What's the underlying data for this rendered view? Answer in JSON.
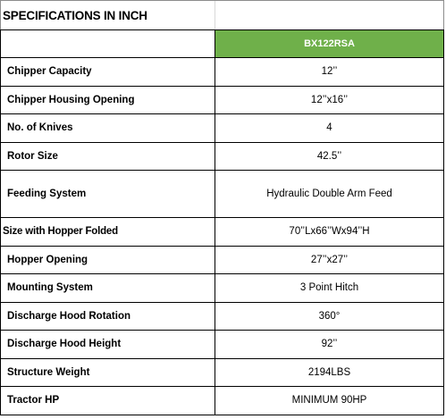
{
  "title": "SPECIFICATIONS IN INCH",
  "model_header": "BX122RSA",
  "header_label": "",
  "rows": [
    {
      "label": "Chipper Capacity",
      "value": "12’’"
    },
    {
      "label": "Chipper Housing Opening",
      "value": "12’’x16’’"
    },
    {
      "label": "No. of Knives",
      "value": "4"
    },
    {
      "label": "Rotor Size",
      "value": "42.5’’"
    },
    {
      "label": "Feeding System",
      "value": "Hydraulic Double Arm Feed"
    },
    {
      "label": "Size with Hopper Folded",
      "value": "70’’Lx66’’Wx94’’H"
    },
    {
      "label": "Hopper Opening",
      "value": "27’’x27’’"
    },
    {
      "label": "Mounting System",
      "value": "3 Point Hitch"
    },
    {
      "label": "Discharge Hood Rotation",
      "value": "360°"
    },
    {
      "label": "Discharge Hood Height",
      "value": "92’’"
    },
    {
      "label": "Structure Weight",
      "value": "2194LBS"
    },
    {
      "label": "Tractor HP",
      "value": "MINIMUM 90HP"
    }
  ],
  "colors": {
    "model_header_bg": "#6fb04a",
    "model_header_text": "#ffffff",
    "border": "#000000"
  }
}
